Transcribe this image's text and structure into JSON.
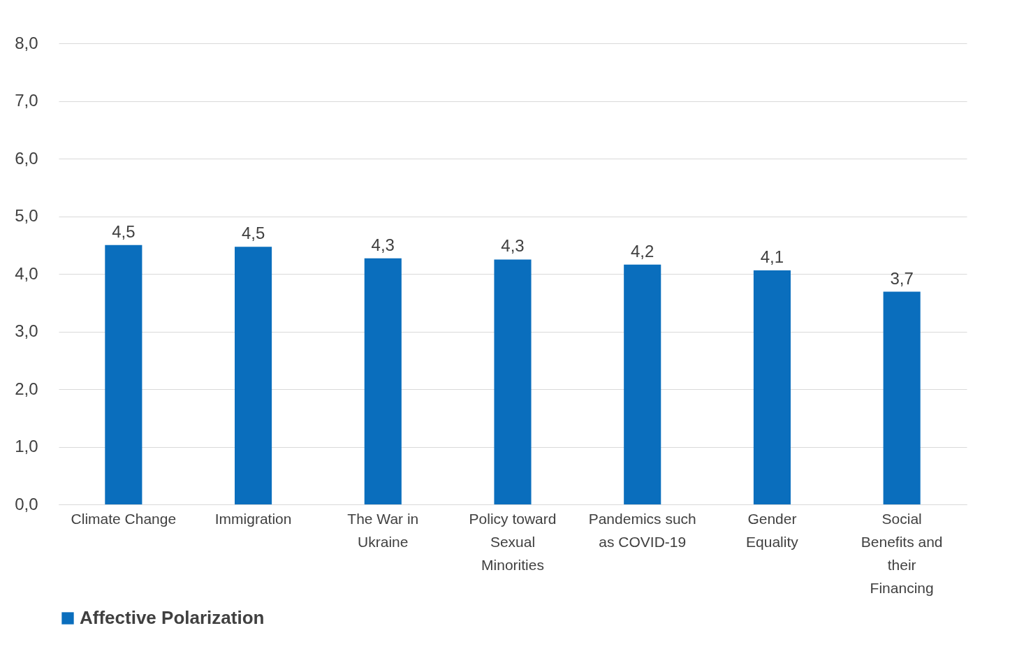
{
  "chart_data": {
    "type": "bar",
    "categories": [
      "Climate Change",
      "Immigration",
      "The War in Ukraine",
      "Policy toward Sexual Minorities",
      "Pandemics such as COVID-19",
      "Gender Equality",
      "Social Benefits and their Financing"
    ],
    "series": [
      {
        "name": "Affective Polarization",
        "color": "#0a6ebd",
        "values": [
          4.5,
          4.47,
          4.27,
          4.25,
          4.16,
          4.06,
          3.69
        ],
        "value_labels": [
          "4,5",
          "4,5",
          "4,3",
          "4,3",
          "4,2",
          "4,1",
          "3,7"
        ]
      }
    ],
    "ylim": [
      0,
      8
    ],
    "yticks": [
      {
        "value": 0,
        "label": "0,0"
      },
      {
        "value": 1,
        "label": "1,0"
      },
      {
        "value": 2,
        "label": "2,0"
      },
      {
        "value": 3,
        "label": "3,0"
      },
      {
        "value": 4,
        "label": "4,0"
      },
      {
        "value": 5,
        "label": "5,0"
      },
      {
        "value": 6,
        "label": "6,0"
      },
      {
        "value": 7,
        "label": "7,0"
      },
      {
        "value": 8,
        "label": "8,0"
      }
    ],
    "grid": "y",
    "legend": "bottom"
  }
}
